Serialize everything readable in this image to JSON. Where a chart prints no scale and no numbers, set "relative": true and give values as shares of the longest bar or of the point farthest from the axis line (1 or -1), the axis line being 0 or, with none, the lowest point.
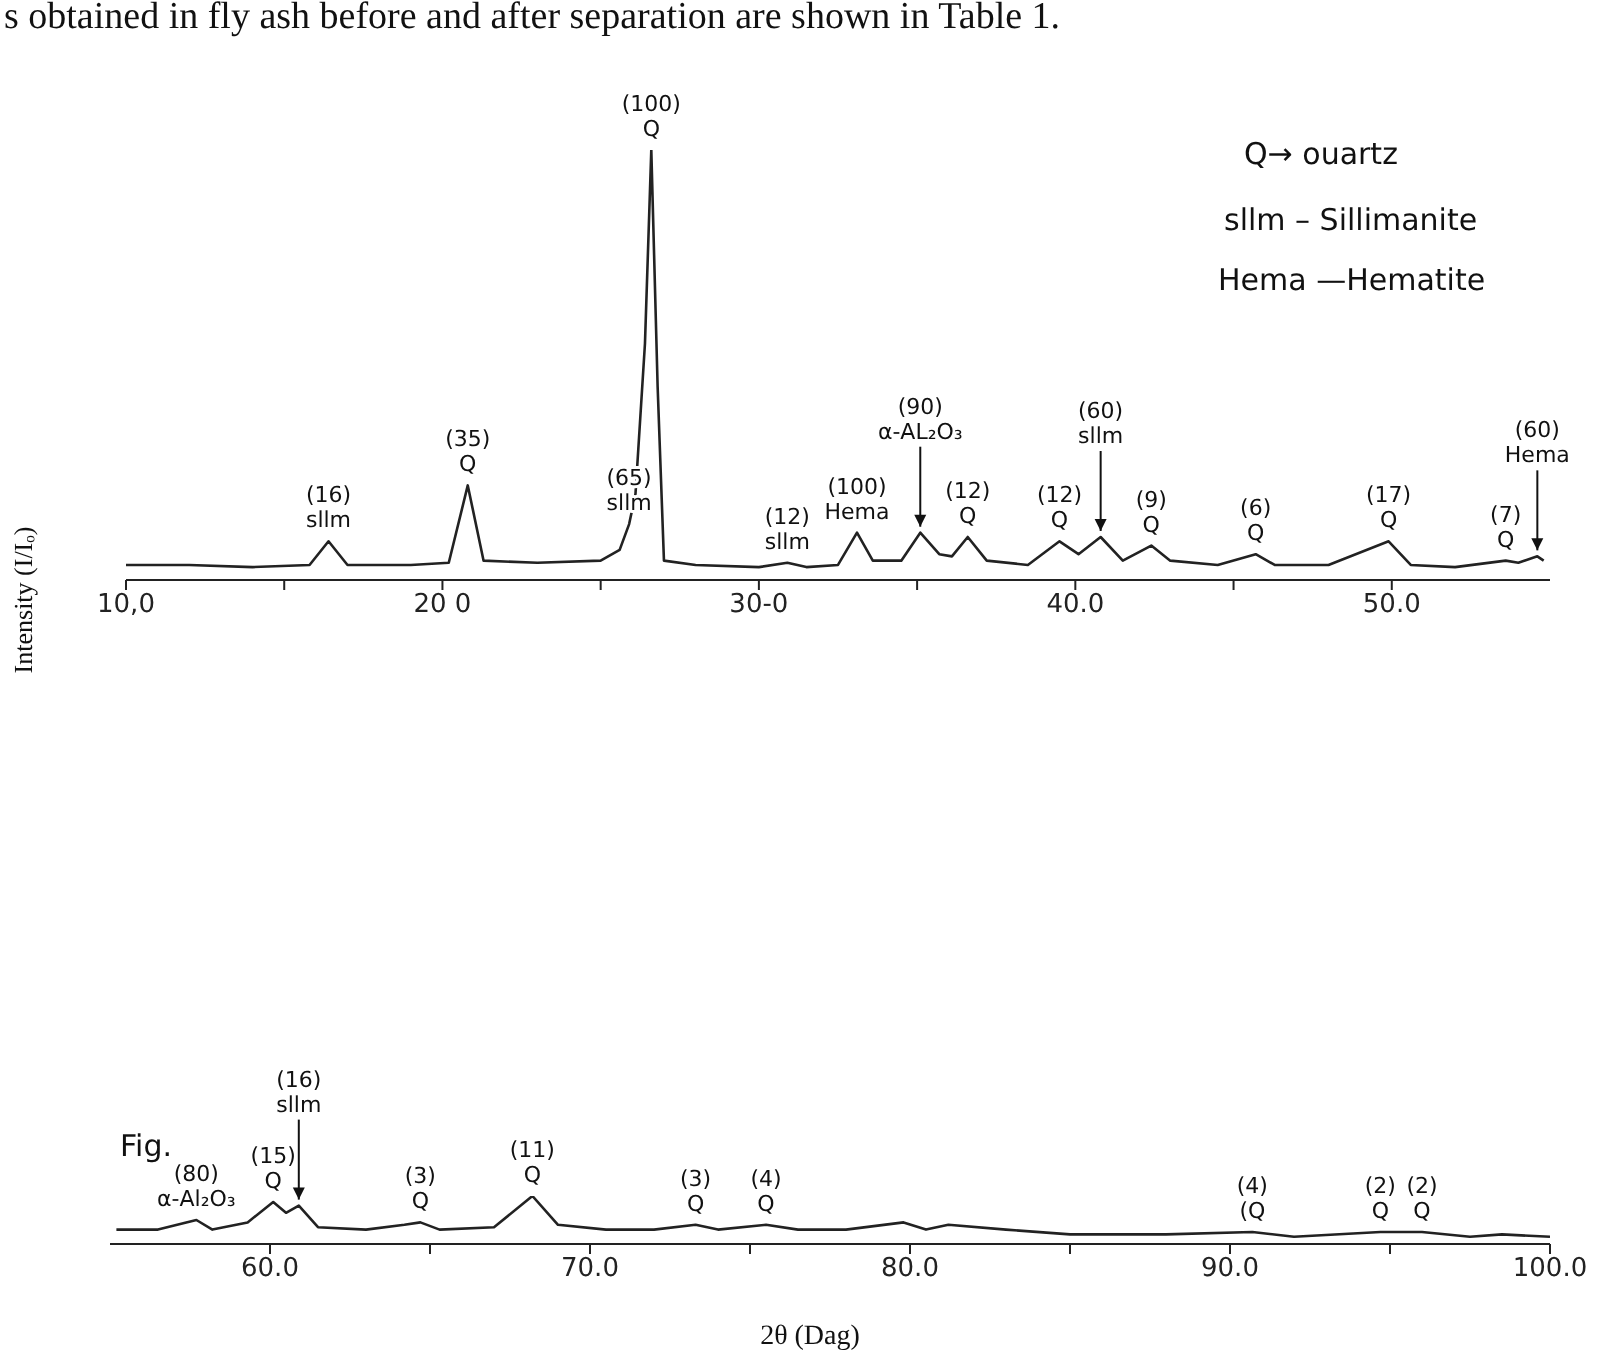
{
  "chart_data": [
    {
      "type": "line",
      "relative": true,
      "ylabel": "Intensity (I/Iₒ)",
      "color": "#222222",
      "annotations": [
        "s obtained in fly ash before and after separation are shown in Table 1.",
        "Q→ ouartz",
        "sllm – Sillimanite",
        "Hema —Hematite",
        {
          "text": "(16)\nsllm",
          "x": 16.4,
          "y": 0.09
        },
        {
          "text": "(35)\nQ",
          "x": 20.8,
          "y": 0.22
        },
        {
          "text": "(65)\nsllm",
          "x": 25.9,
          "y": 0.13
        },
        {
          "text": "(100)\nQ",
          "x": 26.6,
          "y": 1
        },
        {
          "text": "(12)\nsllm",
          "x": 30.9,
          "y": 0.04
        },
        {
          "text": "(100)\nHema",
          "x": 33.1,
          "y": 0.11
        },
        {
          "text": "(90)\nα-AL₂O₃",
          "x": 35.1,
          "y": 0.11
        },
        {
          "text": "(12)\nQ",
          "x": 36.6,
          "y": 0.1
        },
        {
          "text": "(12)\nQ",
          "x": 39.5,
          "y": 0.09
        },
        {
          "text": "(60)\nsllm",
          "x": 40.8,
          "y": 0.1
        },
        {
          "text": "(9)\nQ",
          "x": 42.4,
          "y": 0.08
        },
        {
          "text": "(6)\nQ",
          "x": 45.7,
          "y": 0.06
        },
        {
          "text": "(17)\nQ",
          "x": 49.9,
          "y": 0.09
        },
        {
          "text": "(7)\nQ",
          "x": 53.6,
          "y": 0.045
        },
        {
          "text": "(60)\nHema",
          "x": 54.6,
          "y": 0.055
        }
      ],
      "xlim": [
        10,
        55
      ],
      "xticks": [
        {
          "value": 10,
          "label": "10,0"
        },
        {
          "value": 15,
          "label": null
        },
        {
          "value": 20,
          "label": "20 0"
        },
        {
          "value": 25,
          "label": null
        },
        {
          "value": 30,
          "label": "30-0"
        },
        {
          "value": 35,
          "label": null
        },
        {
          "value": 40,
          "label": "40.0"
        },
        {
          "value": 45,
          "label": null
        },
        {
          "value": 50,
          "label": "50.0"
        }
      ],
      "x": [
        10,
        12,
        14,
        15.8,
        16.4,
        17,
        19,
        20.2,
        20.8,
        21.3,
        23,
        25,
        25.6,
        25.9,
        26.1,
        26.4,
        26.6,
        26.8,
        27,
        28,
        30,
        30.9,
        31.5,
        32.5,
        33.1,
        33.6,
        34.5,
        35.1,
        35.7,
        36.1,
        36.6,
        37.2,
        38.5,
        39.5,
        40.1,
        40.8,
        41.5,
        42.4,
        43,
        44.5,
        45.7,
        46.3,
        48,
        49.9,
        50.6,
        52,
        53.6,
        54,
        54.6,
        54.8
      ],
      "values": [
        0.035,
        0.035,
        0.03,
        0.035,
        0.09,
        0.035,
        0.035,
        0.04,
        0.22,
        0.045,
        0.04,
        0.045,
        0.07,
        0.13,
        0.2,
        0.55,
        1,
        0.45,
        0.045,
        0.035,
        0.03,
        0.04,
        0.03,
        0.035,
        0.11,
        0.045,
        0.045,
        0.11,
        0.06,
        0.055,
        0.1,
        0.045,
        0.035,
        0.09,
        0.06,
        0.1,
        0.045,
        0.08,
        0.045,
        0.035,
        0.06,
        0.035,
        0.035,
        0.09,
        0.035,
        0.03,
        0.045,
        0.04,
        0.055,
        0.045
      ]
    },
    {
      "type": "line",
      "relative": true,
      "xlabel": "2θ (Dag)",
      "color": "#222222",
      "annotations": [
        "Fig.",
        {
          "text": "(80)\nα-Al₂O₃",
          "x": 57.7,
          "y": 0.5
        },
        {
          "text": "(15)\nQ",
          "x": 60.1,
          "y": 0.875
        },
        {
          "text": "(16)\nsllm",
          "x": 60.9,
          "y": 0.8
        },
        {
          "text": "(3)\nQ",
          "x": 64.7,
          "y": 0.45
        },
        {
          "text": "(11)\nQ",
          "x": 68.2,
          "y": 1
        },
        {
          "text": "(3)\nQ",
          "x": 73.3,
          "y": 0.4
        },
        {
          "text": "(4)\nQ",
          "x": 75.5,
          "y": 0.4
        },
        {
          "text": "(4)\n(Q",
          "x": 90.7,
          "y": 0.25
        },
        {
          "text": "(2)\nQ",
          "x": 94.7,
          "y": 0.25
        },
        {
          "text": "(2)\nQ",
          "x": 96,
          "y": 0.25
        }
      ],
      "xlim": [
        55,
        100
      ],
      "xticks": [
        {
          "value": 60,
          "label": "60.0"
        },
        {
          "value": 65,
          "label": null
        },
        {
          "value": 70,
          "label": "70.0"
        },
        {
          "value": 75,
          "label": null
        },
        {
          "value": 80,
          "label": "80.0"
        },
        {
          "value": 85,
          "label": null
        },
        {
          "value": 90,
          "label": "90.0"
        },
        {
          "value": 95,
          "label": null
        },
        {
          "value": 100,
          "label": "100.0"
        }
      ],
      "x": [
        55.2,
        56.5,
        57.7,
        58.2,
        59.3,
        60.1,
        60.5,
        60.9,
        61.5,
        63,
        64.2,
        64.7,
        65.3,
        67,
        68.2,
        69,
        70.5,
        72,
        73.3,
        74,
        75.5,
        76.5,
        78,
        79.8,
        80.5,
        81.2,
        83,
        85,
        88,
        90.7,
        92,
        94.7,
        96,
        97.5,
        98.5,
        100
      ],
      "values": [
        0.3,
        0.3,
        0.5,
        0.3,
        0.45,
        0.875,
        0.65,
        0.8,
        0.35,
        0.3,
        0.4,
        0.45,
        0.3,
        0.35,
        1,
        0.4,
        0.3,
        0.3,
        0.4,
        0.3,
        0.4,
        0.3,
        0.3,
        0.45,
        0.3,
        0.4,
        0.3,
        0.2,
        0.2,
        0.25,
        0.15,
        0.25,
        0.25,
        0.15,
        0.2,
        0.15
      ]
    }
  ]
}
